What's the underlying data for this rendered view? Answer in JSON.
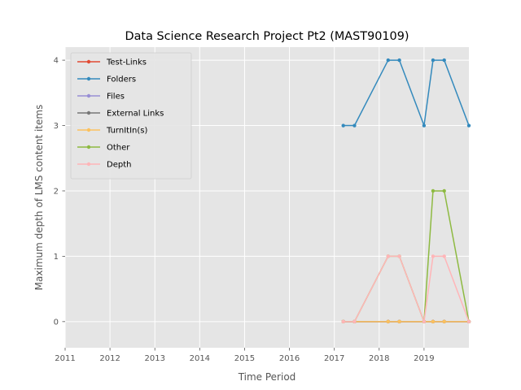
{
  "chart_data": {
    "type": "line",
    "title": "Data Science Research Project Pt2 (MAST90109)",
    "xlabel": "Time Period",
    "ylabel": "Maximum depth of LMS content items",
    "xlim": [
      2011,
      2020
    ],
    "ylim": [
      -0.4,
      4.2
    ],
    "xticks": [
      "2011",
      "2012",
      "2013",
      "2014",
      "2015",
      "2016",
      "2017",
      "2018",
      "2019"
    ],
    "yticks": [
      "0",
      "1",
      "2",
      "3",
      "4"
    ],
    "grid": true,
    "legend_position": "top-left",
    "x": [
      2017.2,
      2017.45,
      2018.2,
      2018.45,
      2019.0,
      2019.2,
      2019.45,
      2020.0
    ],
    "series": [
      {
        "name": "Test-Links",
        "color": "#E24A33",
        "values": [
          0,
          0,
          0,
          0,
          0,
          0,
          0,
          0
        ]
      },
      {
        "name": "Folders",
        "color": "#348ABD",
        "values": [
          3,
          3,
          4,
          4,
          3,
          4,
          4,
          3
        ]
      },
      {
        "name": "Files",
        "color": "#988ED5",
        "values": [
          0,
          0,
          0,
          0,
          0,
          0,
          0,
          0
        ]
      },
      {
        "name": "External Links",
        "color": "#777777",
        "values": [
          0,
          0,
          0,
          0,
          0,
          0,
          0,
          0
        ]
      },
      {
        "name": "TurnItIn(s)",
        "color": "#FBC15E",
        "values": [
          0,
          0,
          0,
          0,
          0,
          0,
          0,
          0
        ]
      },
      {
        "name": "Other",
        "color": "#8EBA42",
        "values": [
          0,
          0,
          1,
          1,
          0,
          2,
          2,
          0
        ]
      },
      {
        "name": "Depth",
        "color": "#FFB5B8",
        "values": [
          0,
          0,
          1,
          1,
          0,
          1,
          1,
          0
        ]
      }
    ]
  }
}
